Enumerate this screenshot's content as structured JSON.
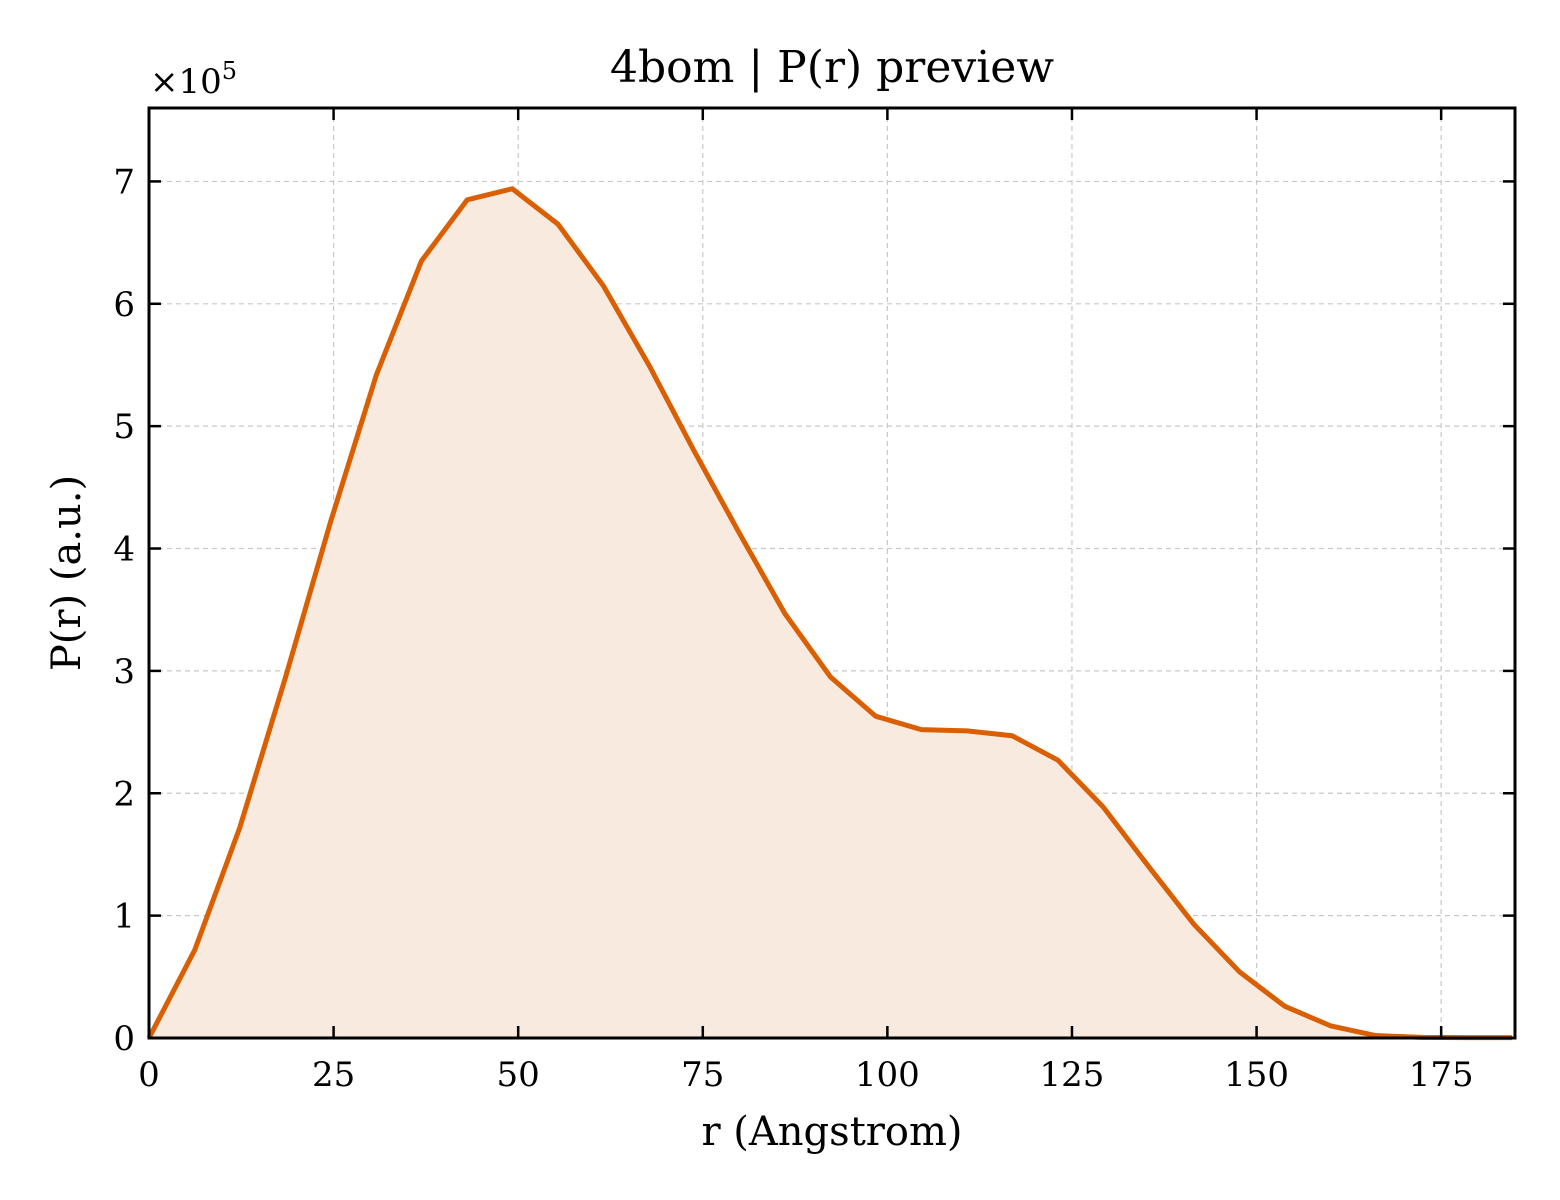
{
  "chart_data": {
    "type": "area",
    "title": "4bom | P(r) preview",
    "xlabel": "r (Angstrom)",
    "ylabel": "P(r) (a.u.)",
    "y_multiplier_label": "×10",
    "y_multiplier_exponent": "5",
    "xlim": [
      0,
      185
    ],
    "ylim": [
      0,
      7.6
    ],
    "xticks": [
      0,
      25,
      50,
      75,
      100,
      125,
      150,
      175
    ],
    "yticks": [
      0,
      1,
      2,
      3,
      4,
      5,
      6,
      7
    ],
    "grid": true,
    "colors": {
      "line": "#d95f02",
      "fill": "#f9eadf",
      "frame": "#000000"
    },
    "series": [
      {
        "x": [
          0,
          6.2,
          12.3,
          18.5,
          24.6,
          30.8,
          36.9,
          43.1,
          49.2,
          55.4,
          61.5,
          67.7,
          73.8,
          80.0,
          86.1,
          92.3,
          98.4,
          104.6,
          110.8,
          116.9,
          123.1,
          129.2,
          135.4,
          141.5,
          147.7,
          153.8,
          160.0,
          166.1,
          172.3,
          178.4,
          184.6
        ],
        "y": [
          0,
          0.72,
          1.72,
          2.95,
          4.22,
          5.42,
          6.35,
          6.85,
          6.94,
          6.65,
          6.15,
          5.5,
          4.8,
          4.12,
          3.47,
          2.95,
          2.63,
          2.52,
          2.51,
          2.47,
          2.27,
          1.89,
          1.4,
          0.93,
          0.54,
          0.26,
          0.1,
          0.02,
          0.005,
          0.003,
          0.003
        ]
      }
    ]
  }
}
